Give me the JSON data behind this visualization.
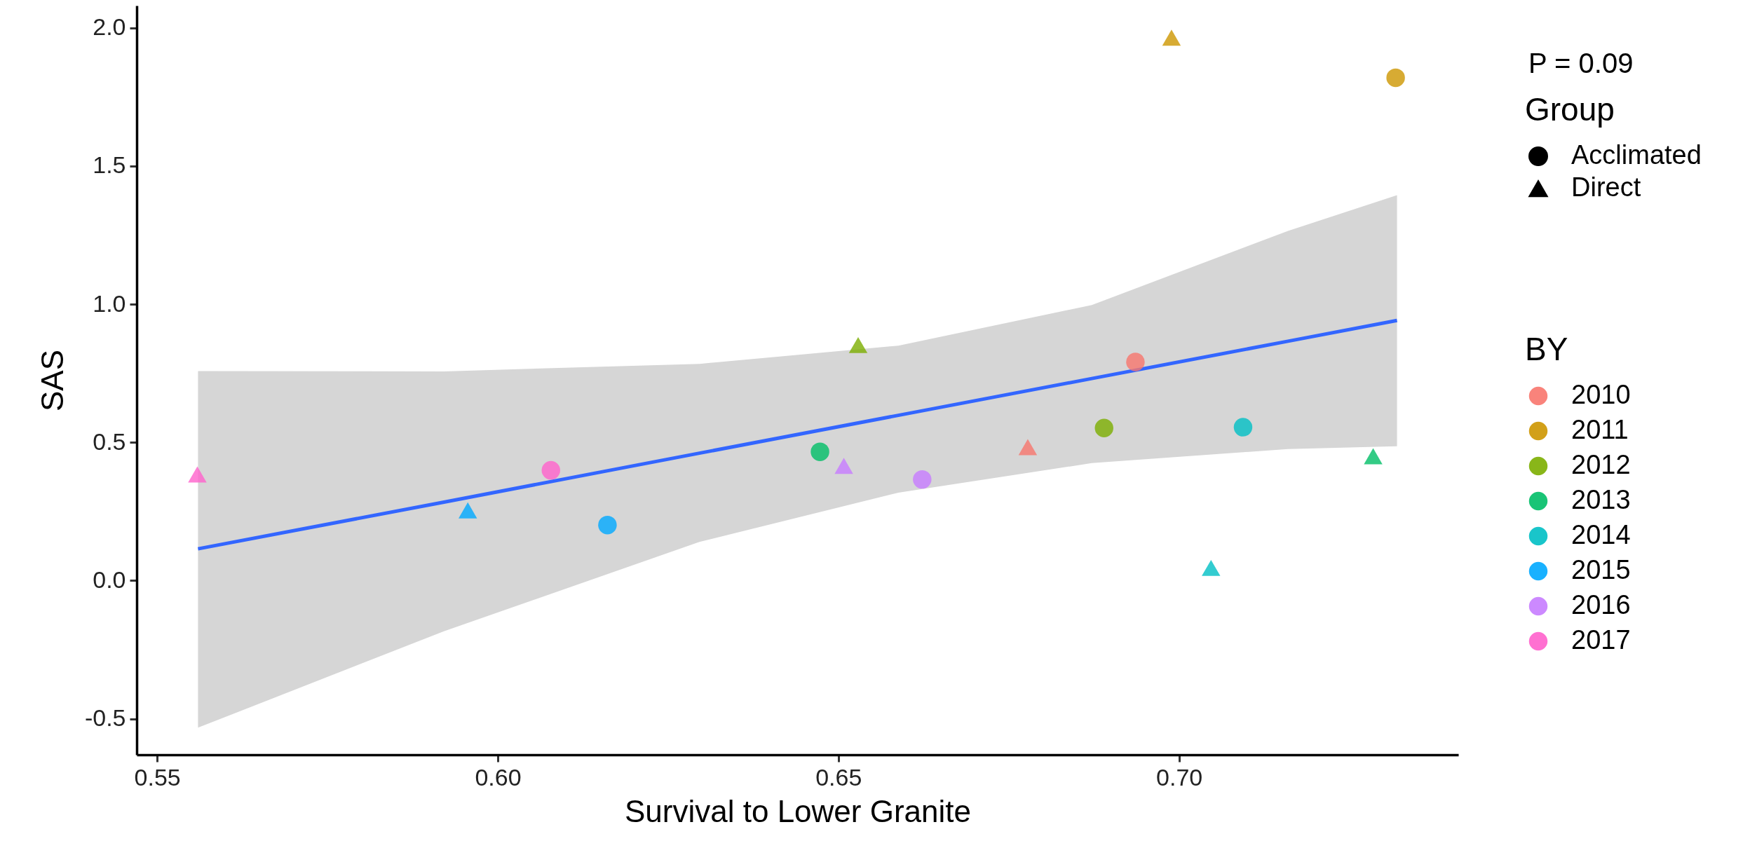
{
  "chart_data": {
    "type": "scatter",
    "xlabel": "Survival to Lower Granite",
    "ylabel": "SAS",
    "xlim": [
      0.547,
      0.741
    ],
    "ylim": [
      -0.63,
      2.08
    ],
    "xticks": [
      {
        "value": 0.55,
        "label": "0.55"
      },
      {
        "value": 0.6,
        "label": "0.60"
      },
      {
        "value": 0.65,
        "label": "0.65"
      },
      {
        "value": 0.7,
        "label": "0.70"
      }
    ],
    "yticks": [
      -0.5,
      {
        "value": 0,
        "label": "0.0"
      },
      0.5,
      {
        "value": 1,
        "label": "1.0"
      },
      1.5,
      {
        "value": 2,
        "label": "2.0"
      }
    ],
    "grid": false,
    "legend": "right",
    "legend_title": [
      "Group",
      "BY"
    ],
    "annotations": [
      "P = 0.09"
    ],
    "series": [
      {
        "name": "Acclimated",
        "marker": "circle",
        "color": "#000000"
      },
      {
        "name": "Direct",
        "marker": "triangle",
        "color": "#000000"
      },
      {
        "name": "2010",
        "color": "#f8766d",
        "marker": "circle",
        "x": [
          0.6936
        ],
        "values": [
          0.791
        ]
      },
      {
        "color": "#f8766d",
        "marker": "triangle",
        "x": [
          0.6778
        ],
        "values": [
          0.483
        ]
      },
      {
        "name": "2011",
        "color": "#cd9600",
        "marker": "circle",
        "x": [
          0.7318
        ],
        "values": [
          1.819
        ]
      },
      {
        "color": "#cd9600",
        "marker": "triangle",
        "x": [
          0.6989
        ],
        "values": [
          1.964
        ]
      },
      {
        "name": "2012",
        "color": "#7cae00",
        "marker": "circle",
        "x": [
          0.689
        ],
        "values": [
          0.552
        ]
      },
      {
        "color": "#7cae00",
        "marker": "triangle",
        "x": [
          0.6529
        ],
        "values": [
          0.852
        ]
      },
      {
        "name": "2013",
        "color": "#00be67",
        "marker": "circle",
        "x": [
          0.6473
        ],
        "values": [
          0.466
        ]
      },
      {
        "color": "#00be67",
        "marker": "triangle",
        "x": [
          0.7285
        ],
        "values": [
          0.45
        ]
      },
      {
        "name": "2014",
        "color": "#00bfc4",
        "marker": "circle",
        "x": [
          0.7094
        ],
        "values": [
          0.555
        ]
      },
      {
        "color": "#00bfc4",
        "marker": "triangle",
        "x": [
          0.7047
        ],
        "values": [
          0.046
        ]
      },
      {
        "name": "2015",
        "color": "#00a9ff",
        "marker": "circle",
        "x": [
          0.6161
        ],
        "values": [
          0.201
        ]
      },
      {
        "color": "#00a9ff",
        "marker": "triangle",
        "x": [
          0.5956
        ],
        "values": [
          0.254
        ]
      },
      {
        "name": "2016",
        "color": "#c77cff",
        "marker": "circle",
        "x": [
          0.6623
        ],
        "values": [
          0.366
        ]
      },
      {
        "color": "#c77cff",
        "marker": "triangle",
        "x": [
          0.6508
        ],
        "values": [
          0.415
        ]
      },
      {
        "name": "2017",
        "color": "#ff61cc",
        "marker": "circle",
        "x": [
          0.6078
        ],
        "values": [
          0.399
        ]
      },
      {
        "color": "#ff61cc",
        "marker": "triangle",
        "x": [
          0.5559
        ],
        "values": [
          0.384
        ]
      },
      {
        "type": "line",
        "color": "#3366ff",
        "x": [
          0.556,
          0.5921,
          0.6296,
          0.6588,
          0.6872,
          0.716,
          0.732
        ],
        "values": [
          0.115,
          0.284,
          0.461,
          0.598,
          0.731,
          0.866,
          0.941
        ],
        "lower": [
          -0.532,
          -0.183,
          0.14,
          0.318,
          0.425,
          0.476,
          0.486
        ],
        "upper": [
          0.758,
          0.757,
          0.784,
          0.85,
          0.997,
          1.265,
          1.394
        ]
      }
    ]
  }
}
